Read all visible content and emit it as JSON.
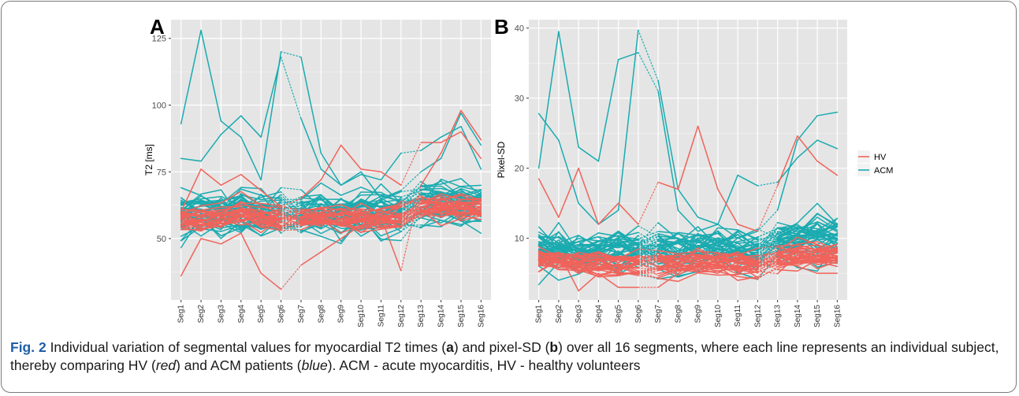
{
  "colors": {
    "hv": "#F0635B",
    "acm": "#1AABB0",
    "panel_bg": "#E5E5E5",
    "grid": "#FFFFFF"
  },
  "chart_data": [
    {
      "type": "line",
      "panel_label": "A",
      "ylabel": "T2 [ms]",
      "categories": [
        "Seg1",
        "Seg2",
        "Seg3",
        "Seg4",
        "Seg5",
        "Seg6",
        "Seg7",
        "Seg8",
        "Seg9",
        "Seg10",
        "Seg11",
        "Seg12",
        "Seg13",
        "Seg14",
        "Seg15",
        "Seg16"
      ],
      "ylim": [
        27,
        132
      ],
      "yticks": [
        50,
        75,
        100,
        125
      ],
      "grid": true,
      "series_summary": [
        {
          "name": "HV",
          "subject_count": 30,
          "approx_mean": [
            57,
            57,
            58,
            60,
            58,
            58,
            58,
            58,
            58,
            58,
            58,
            58,
            62,
            62,
            62,
            62
          ],
          "approx_spread": 6
        },
        {
          "name": "ACM",
          "subject_count": 40,
          "approx_mean": [
            59,
            60,
            59,
            61,
            60,
            60,
            60,
            60,
            59,
            60,
            60,
            60,
            63,
            63,
            63,
            63
          ],
          "approx_spread": 11
        }
      ],
      "notable_lines": [
        {
          "series": "ACM",
          "values": [
            93,
            128,
            94,
            88,
            72,
            120,
            118,
            82,
            70,
            75,
            65,
            68,
            75,
            80,
            97,
            85
          ]
        },
        {
          "series": "ACM",
          "values": [
            80,
            79,
            89,
            96,
            88,
            118,
            95,
            76,
            70,
            74,
            72,
            82,
            83,
            88,
            92,
            76
          ]
        },
        {
          "series": "HV",
          "values": [
            36,
            50,
            48,
            52,
            37,
            31,
            40,
            45,
            50,
            55,
            58,
            38,
            70,
            82,
            98,
            87
          ]
        },
        {
          "series": "HV",
          "values": [
            60,
            76,
            70,
            74,
            68,
            62,
            65,
            72,
            85,
            76,
            75,
            70,
            86,
            86,
            90,
            80
          ]
        }
      ]
    },
    {
      "type": "line",
      "panel_label": "B",
      "ylabel": "Pixel-SD",
      "categories": [
        "Seg1",
        "Seg2",
        "Seg3",
        "Seg4",
        "Seg5",
        "Seg6",
        "Seg7",
        "Seg8",
        "Seg9",
        "Seg10",
        "Seg11",
        "Seg12",
        "Seg13",
        "Seg14",
        "Seg15",
        "Seg16"
      ],
      "ylim": [
        1.2,
        41.2
      ],
      "yticks": [
        10,
        20,
        30,
        40
      ],
      "grid": true,
      "legend": {
        "position": "right",
        "entries": [
          {
            "label": "HV"
          },
          {
            "label": "ACM"
          }
        ]
      },
      "series_summary": [
        {
          "name": "HV",
          "subject_count": 30,
          "approx_mean": [
            7.3,
            7,
            6.5,
            6.8,
            6.5,
            6.7,
            6.8,
            6.5,
            6.8,
            6.6,
            6.6,
            6.5,
            7.5,
            7.8,
            7.9,
            8
          ],
          "approx_spread": 2.2
        },
        {
          "name": "ACM",
          "subject_count": 40,
          "approx_mean": [
            8,
            8,
            7.5,
            7.8,
            7.5,
            8,
            8,
            7.5,
            8,
            7.8,
            7.8,
            7.6,
            9,
            9.5,
            10,
            10
          ],
          "approx_spread": 4
        }
      ],
      "notable_lines": [
        {
          "series": "ACM",
          "values": [
            27.8,
            24,
            15,
            12,
            14,
            39.7,
            32.5,
            17,
            13,
            12,
            10,
            11,
            14,
            24,
            27.5,
            28
          ]
        },
        {
          "series": "ACM",
          "values": [
            20,
            39.5,
            23,
            21,
            35.5,
            36.5,
            31,
            14,
            11,
            12,
            19,
            17.5,
            18,
            21.5,
            24,
            22.8
          ]
        },
        {
          "series": "HV",
          "values": [
            18.5,
            13,
            20,
            12,
            15,
            12,
            18,
            17,
            26,
            17,
            12,
            11,
            17.5,
            24.6,
            21,
            19
          ]
        },
        {
          "series": "HV",
          "values": [
            6,
            8,
            2.5,
            5,
            3,
            3,
            3,
            5,
            7,
            6,
            4,
            4.5,
            7,
            6,
            5,
            5
          ]
        }
      ]
    }
  ],
  "caption": {
    "label": "Fig. 2",
    "parts": [
      " Individual variation of segmental values for myocardial T2 times (",
      "a",
      ") and pixel-SD (",
      "b",
      ") over all 16 segments, where each line represents an individual subject, thereby comparing HV (",
      "red",
      ") and ACM patients (",
      "blue",
      "). ACM - acute myocarditis, HV - healthy volunteers"
    ]
  }
}
